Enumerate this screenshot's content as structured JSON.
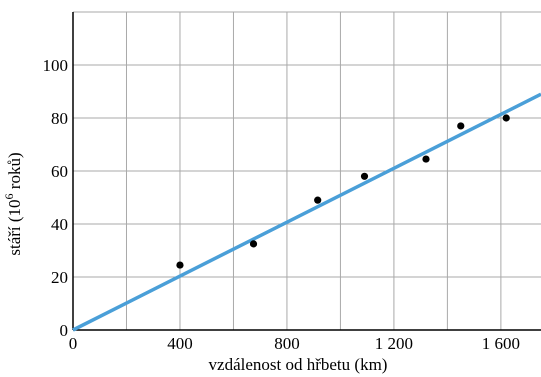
{
  "chart_data": {
    "type": "scatter",
    "xlabel": "vzdálenost od hřbetu (km)",
    "ylabel": {
      "prefix": "stáří (10",
      "superscript": "6",
      "suffix": " roků)"
    },
    "xlim": [
      0,
      1750
    ],
    "ylim": [
      0,
      120
    ],
    "xticks": [
      0,
      400,
      800,
      1200,
      1600
    ],
    "xtick_labels": [
      "0",
      "400",
      "800",
      "1 200",
      "1 600"
    ],
    "yticks": [
      0,
      20,
      40,
      60,
      80,
      100
    ],
    "ytick_labels": [
      "0",
      "20",
      "40",
      "60",
      "80",
      "100"
    ],
    "grid": true,
    "x_grid_step": 200,
    "y_grid_step": 20,
    "points": [
      {
        "x": 400,
        "y": 24.5
      },
      {
        "x": 675,
        "y": 32.5
      },
      {
        "x": 915,
        "y": 49
      },
      {
        "x": 1090,
        "y": 58
      },
      {
        "x": 1320,
        "y": 64.5
      },
      {
        "x": 1450,
        "y": 77
      },
      {
        "x": 1620,
        "y": 80
      }
    ],
    "trendline": {
      "x": [
        0,
        1750
      ],
      "y": [
        0,
        89
      ]
    },
    "colors": {
      "trendline": "#4a9fd8",
      "points": "#000000",
      "grid": "#a9a9a9",
      "axes": "#000000"
    }
  }
}
